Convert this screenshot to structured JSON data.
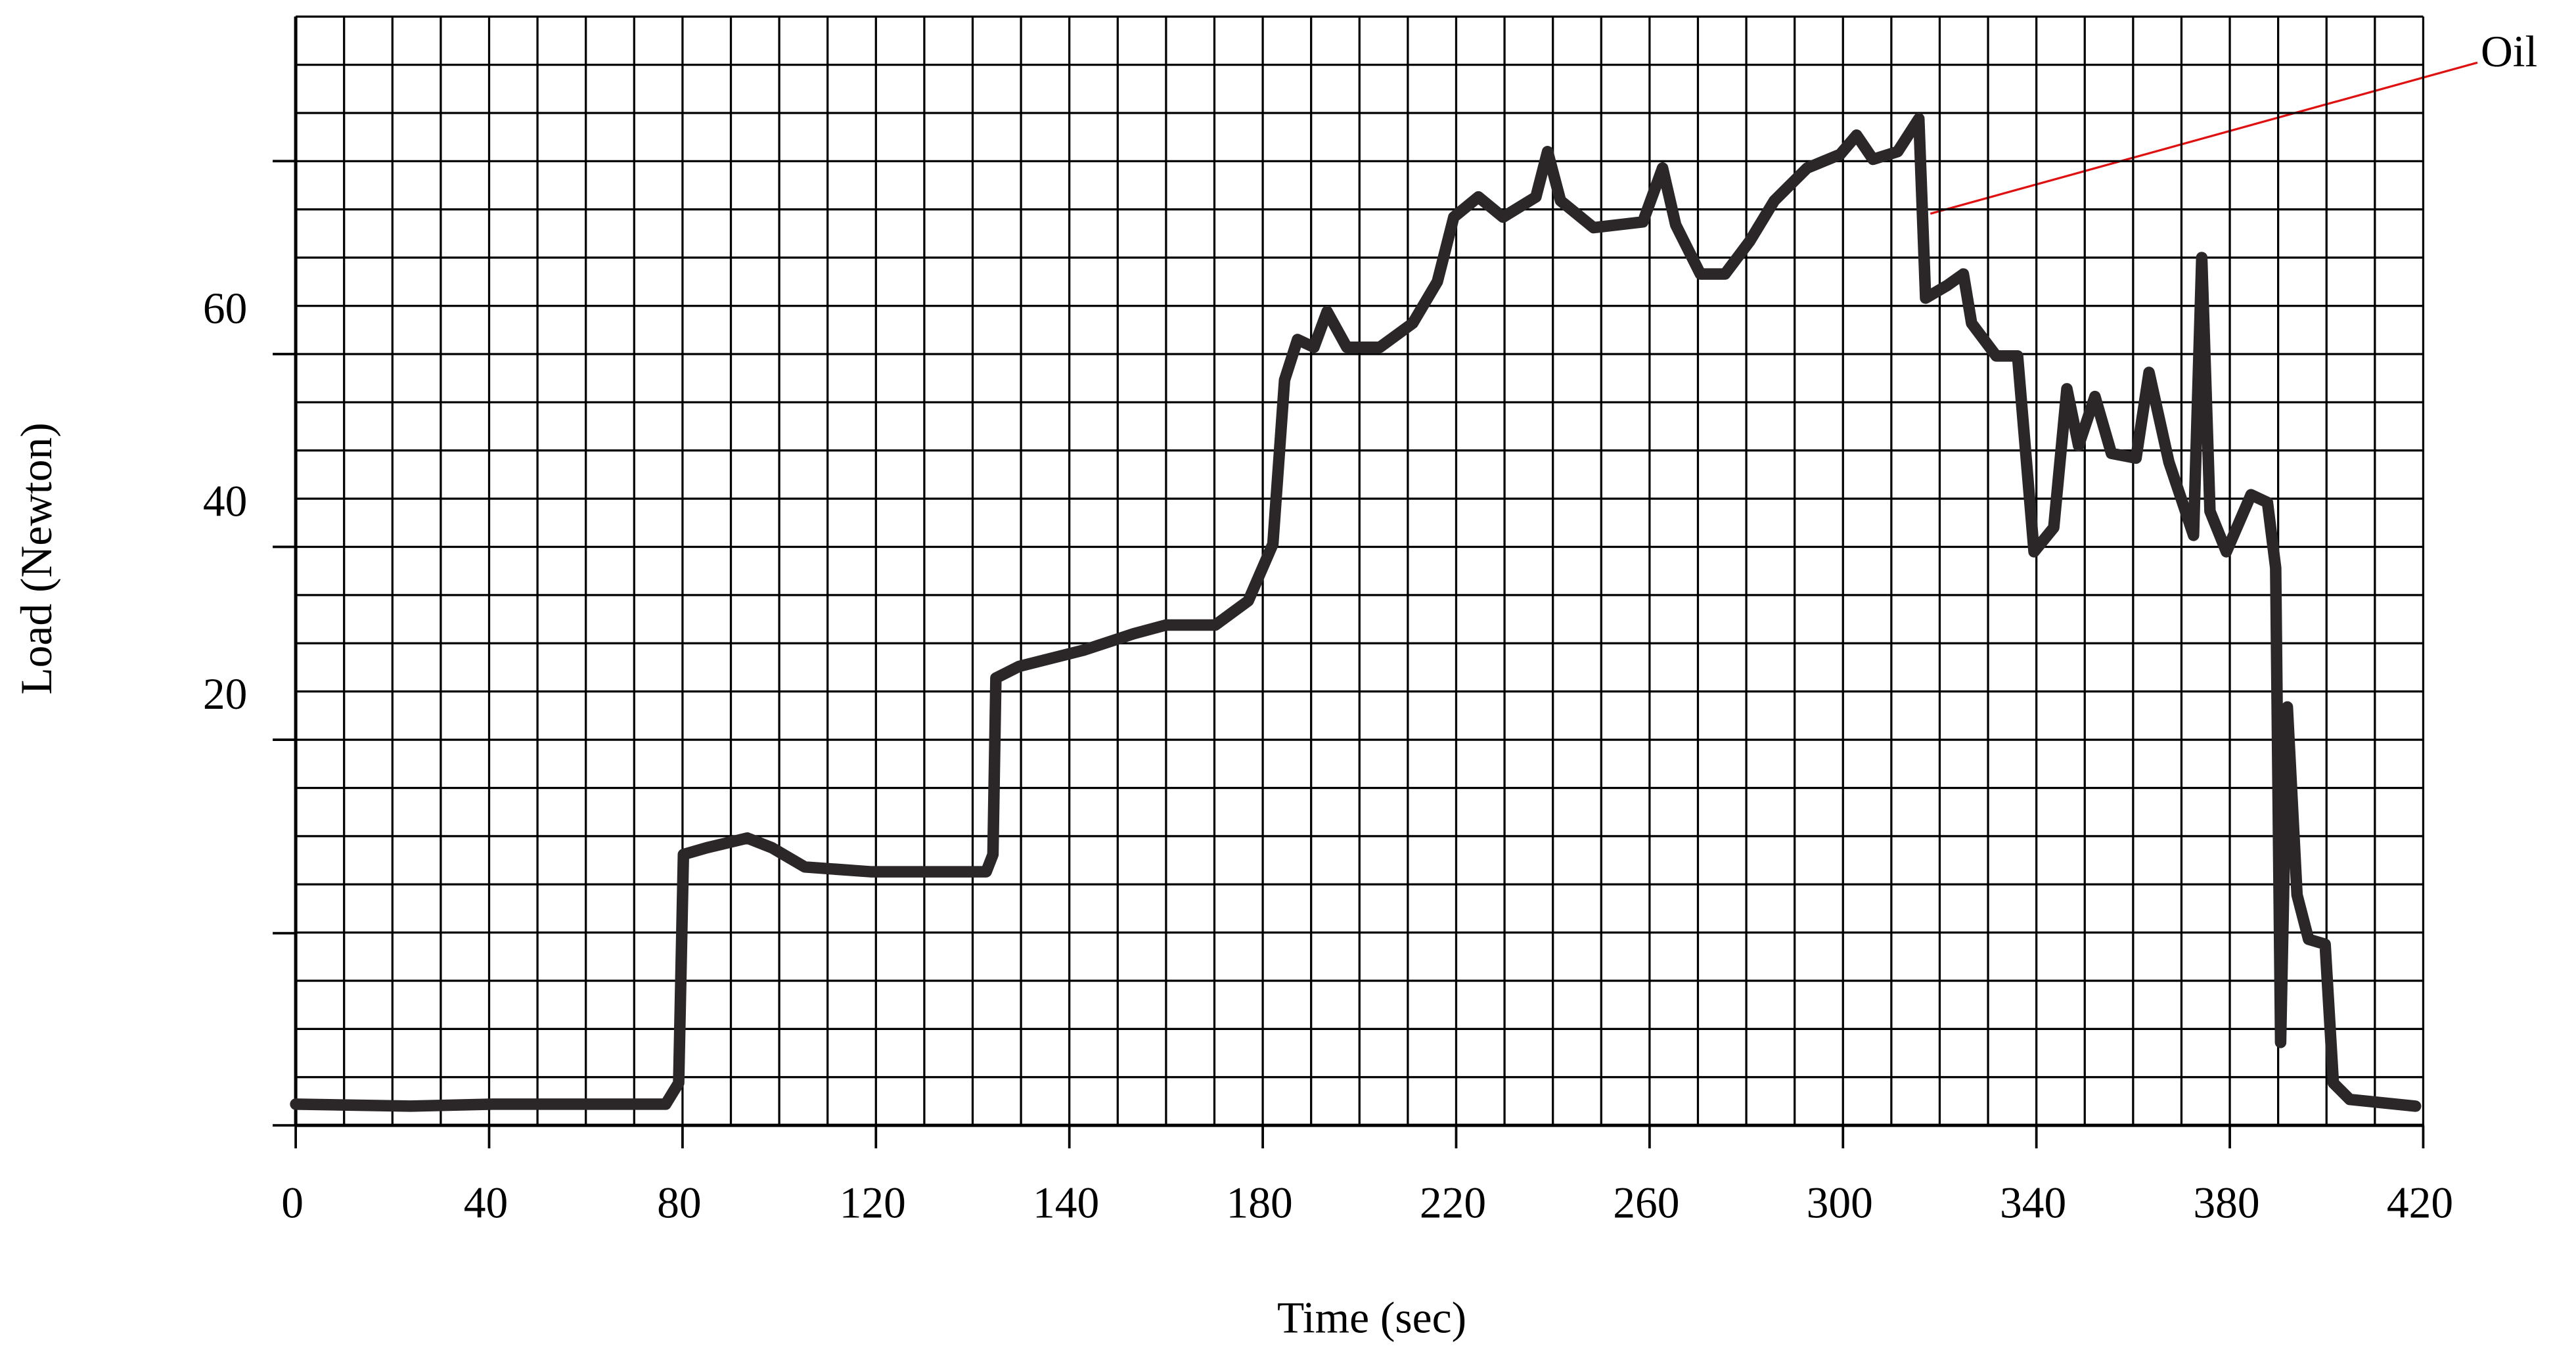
{
  "chart_data": {
    "type": "line",
    "x_label": "Time (sec)",
    "y_label": "Load (Newton)",
    "annotation": "Oil",
    "xlim": [
      0,
      420
    ],
    "xticks": [
      0,
      40,
      80,
      120,
      140,
      180,
      220,
      260,
      300,
      340,
      380,
      420
    ],
    "ylim": [
      -20,
      95
    ],
    "yticks": [
      20,
      40,
      60
    ],
    "grid": true,
    "color": "#2b2628",
    "x": [
      0,
      23.8,
      40.8,
      76.5,
      79.2,
      80.2,
      85,
      93.4,
      98.5,
      105.3,
      118.9,
      131.4,
      132.1,
      132.4,
      134.8,
      143.1,
      153.3,
      160,
      170.2,
      177,
      182.1,
      184.5,
      187.2,
      190.6,
      193.3,
      197.4,
      204.2,
      211,
      216.1,
      219.5,
      224.6,
      229.7,
      236.5,
      238.9,
      241.6,
      248.4,
      258.6,
      262.7,
      265.4,
      270.5,
      275.6,
      280.7,
      285.8,
      292.6,
      299.4,
      302.8,
      306.2,
      311.3,
      315.7,
      317.1,
      321.5,
      324.9,
      326.6,
      331.7,
      336.1,
      339.5,
      343.6,
      346.3,
      348.7,
      352.1,
      355.5,
      360.6,
      363.3,
      367.4,
      372.5,
      374.2,
      375.9,
      379.3,
      384.4,
      387.8,
      389.5,
      390.5,
      391.9,
      393.9,
      396.3,
      399.7,
      401.4,
      404.8,
      418.4
    ],
    "values": [
      -17.8,
      -18,
      -17.8,
      -17.8,
      -15.6,
      8.1,
      8.8,
      9.8,
      8.8,
      6.8,
      6.3,
      6.3,
      8.1,
      26.4,
      27.6,
      29.3,
      31,
      31.9,
      31.9,
      34.4,
      40.3,
      57.3,
      61.5,
      60.7,
      64.4,
      60.7,
      60.7,
      63.2,
      67.5,
      74.2,
      76.3,
      74.2,
      76.3,
      81,
      75.9,
      73.1,
      73.7,
      79.3,
      73.4,
      68.3,
      68.3,
      71.7,
      75.9,
      79.3,
      80.7,
      82.7,
      80.2,
      81,
      84.4,
      65.8,
      67.1,
      68.3,
      63.2,
      59.8,
      59.8,
      39.5,
      42,
      56.4,
      50.5,
      55.6,
      49.7,
      49.2,
      58.1,
      48.8,
      41.2,
      70,
      43.7,
      39.5,
      45.4,
      44.6,
      37.8,
      -11.4,
      23.4,
      3.9,
      -0.7,
      -1.2,
      -15.6,
      -17.3,
      -18
    ]
  }
}
